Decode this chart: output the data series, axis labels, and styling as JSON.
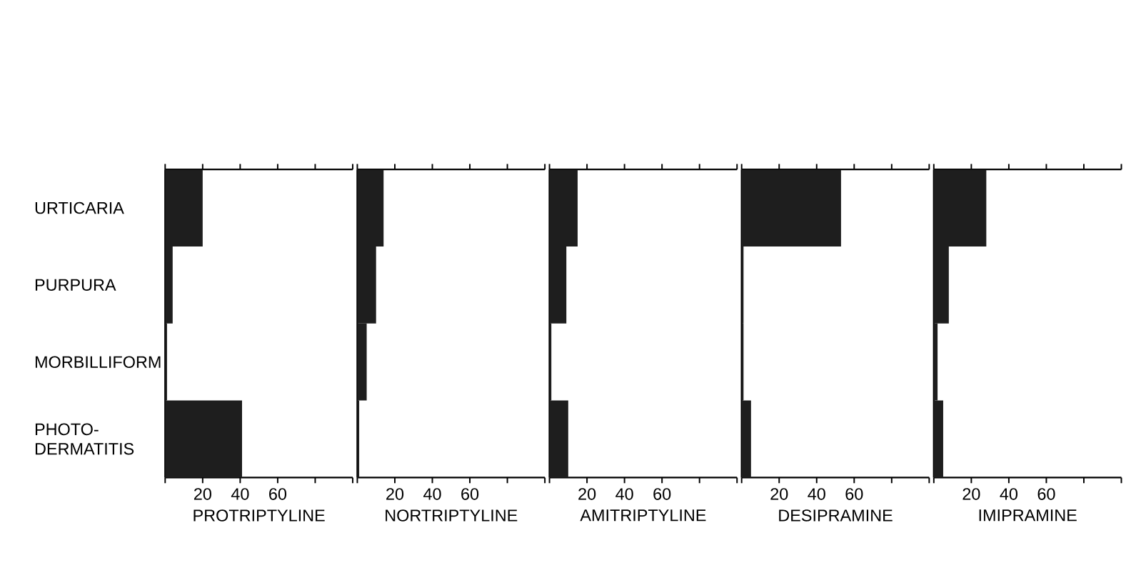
{
  "chart_data": [
    {
      "type": "bar",
      "orientation": "horizontal",
      "categories": [
        "URTICARIA",
        "PURPURA",
        "MORBILLIFORM",
        "PHOTO-DERMATITIS"
      ],
      "values": [
        20,
        4,
        1,
        41
      ],
      "color": "#1e1e1e",
      "xlim": [
        0,
        100
      ],
      "xticks": [
        {
          "value": 0,
          "label": null
        },
        20,
        40,
        60,
        {
          "value": 80,
          "label": null
        },
        {
          "value": 100,
          "label": null
        }
      ],
      "xlabel": "PROTRIPTYLINE"
    },
    {
      "type": "bar",
      "orientation": "horizontal",
      "values": [
        14,
        10,
        5,
        1
      ],
      "color": "#1e1e1e",
      "xlim": [
        0,
        100
      ],
      "xticks": [
        {
          "value": 0,
          "label": null
        },
        20,
        40,
        60,
        {
          "value": 80,
          "label": null
        },
        {
          "value": 100,
          "label": null
        }
      ],
      "xlabel": "NORTRIPTYLINE",
      "tick_labels": "x"
    },
    {
      "type": "bar",
      "orientation": "horizontal",
      "values": [
        15,
        9,
        1,
        10
      ],
      "color": "#1e1e1e",
      "xlim": [
        0,
        100
      ],
      "xticks": [
        {
          "value": 0,
          "label": null
        },
        20,
        40,
        60,
        {
          "value": 80,
          "label": null
        },
        {
          "value": 100,
          "label": null
        }
      ],
      "xlabel": "AMITRIPTYLINE",
      "tick_labels": "x"
    },
    {
      "type": "bar",
      "orientation": "horizontal",
      "values": [
        53,
        1,
        1,
        5
      ],
      "color": "#1e1e1e",
      "xlim": [
        0,
        100
      ],
      "xticks": [
        {
          "value": 0,
          "label": null
        },
        20,
        40,
        60,
        {
          "value": 80,
          "label": null
        },
        {
          "value": 100,
          "label": null
        }
      ],
      "xlabel": "DESIPRAMINE",
      "tick_labels": "x"
    },
    {
      "type": "bar",
      "orientation": "horizontal",
      "values": [
        28,
        8,
        2,
        5
      ],
      "color": "#1e1e1e",
      "xlim": [
        0,
        100
      ],
      "xticks": [
        {
          "value": 0,
          "label": null
        },
        20,
        40,
        60,
        {
          "value": 80,
          "label": null
        },
        {
          "value": 100,
          "label": null
        }
      ],
      "xlabel": "IMIPRAMINE",
      "tick_labels": "x"
    }
  ]
}
